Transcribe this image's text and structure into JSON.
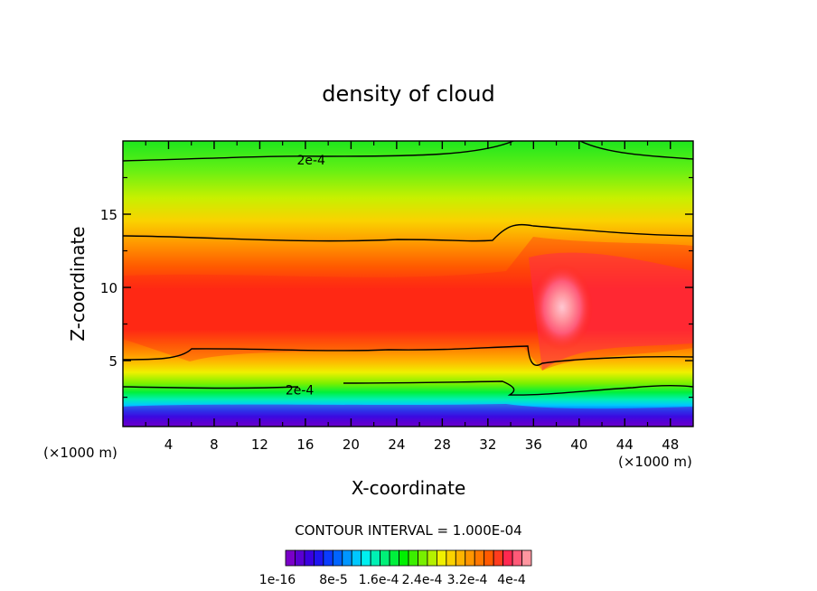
{
  "chart_data": {
    "type": "heatmap",
    "title": "density of cloud",
    "xlabel": "X-coordinate",
    "ylabel": "Z-coordinate",
    "x_unit_left": "(×1000 m)",
    "x_unit_right": "(×1000 m)",
    "xlim": [
      0,
      50
    ],
    "ylim": [
      0.5,
      20
    ],
    "xticks": [
      4,
      8,
      12,
      16,
      20,
      24,
      28,
      32,
      36,
      40,
      44,
      48
    ],
    "xtick_labels": [
      "4",
      "8",
      "12",
      "16",
      "20",
      "24",
      "28",
      "32",
      "36",
      "40",
      "44",
      "48"
    ],
    "yticks": [
      5,
      10,
      15
    ],
    "ytick_labels": [
      "5",
      "10",
      "15"
    ],
    "contour_labels": [
      {
        "text": "2e-4",
        "x": 16.5,
        "z": 18.7
      },
      {
        "text": "2e-4",
        "x": 15.5,
        "z": 3.0
      }
    ],
    "contour_interval_text": "CONTOUR INTERVAL = 1.000E-04",
    "colorbar": {
      "colors": [
        "#7a00c8",
        "#5a00d2",
        "#3a00e0",
        "#1e14f0",
        "#0a3cff",
        "#0064ff",
        "#0096ff",
        "#00c8ff",
        "#00f0f0",
        "#00f0b4",
        "#00f078",
        "#00f03c",
        "#00f000",
        "#3cf000",
        "#78f000",
        "#b4f000",
        "#f0f000",
        "#fad200",
        "#ffb400",
        "#ff9600",
        "#ff7800",
        "#ff5a00",
        "#ff3c1e",
        "#ff2850",
        "#ff5a78",
        "#ff96a0"
      ],
      "labels": [
        "1e-16",
        "8e-5",
        "1.6e-4",
        "2.4e-4",
        "3.2e-4",
        "4e-4"
      ]
    }
  }
}
